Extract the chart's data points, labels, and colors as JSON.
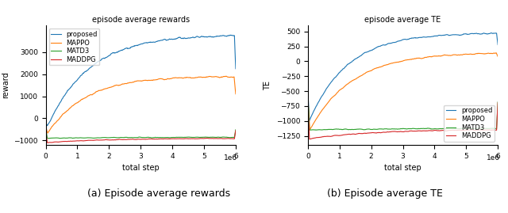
{
  "left_title": "episode average rewards",
  "right_title": "episode average TE",
  "xlabel": "total step",
  "left_ylabel": "reward",
  "right_ylabel": "TE",
  "caption_left": "(a) Episode average rewards",
  "caption_right": "(b) Episode average TE",
  "x_max": 6000000,
  "x_ticks": [
    0,
    1000000,
    2000000,
    3000000,
    4000000,
    5000000,
    6000000
  ],
  "x_ticklabels": [
    "0",
    "1",
    "2",
    "3",
    "4",
    "5",
    "6"
  ],
  "legend_labels": [
    "proposed",
    "MAPPO",
    "MATD3",
    "MADDPG"
  ],
  "colors": [
    "#1f77b4",
    "#ff7f0e",
    "#2ca02c",
    "#d62728"
  ],
  "left_ylim": [
    -1200,
    4200
  ],
  "right_ylim": [
    -1400,
    600
  ],
  "left_yticks": [
    -1000,
    0,
    1000,
    2000,
    3000
  ],
  "right_yticks": [
    -1250,
    -1000,
    -750,
    -500,
    -250,
    0,
    250,
    500
  ],
  "n_points": 600,
  "seed": 42
}
